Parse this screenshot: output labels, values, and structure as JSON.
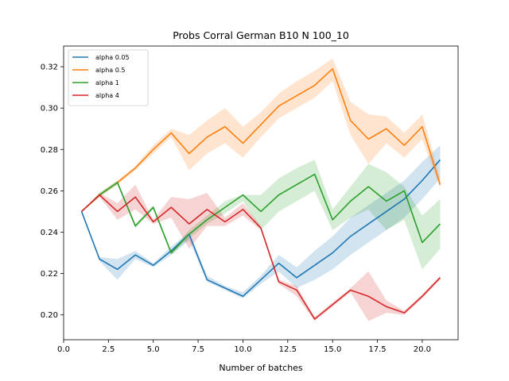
{
  "chart_data": {
    "type": "line",
    "title": "Probs Corral German B10 N 100_10",
    "xlabel": "Number of batches",
    "ylabel": "",
    "xlim": [
      0.0,
      22.0
    ],
    "ylim": [
      0.188,
      0.33
    ],
    "xticks": [
      0.0,
      2.5,
      5.0,
      7.5,
      10.0,
      12.5,
      15.0,
      17.5,
      20.0
    ],
    "xtick_labels": [
      "0.0",
      "2.5",
      "5.0",
      "7.5",
      "10.0",
      "12.5",
      "15.0",
      "17.5",
      "20.0"
    ],
    "yticks": [
      0.2,
      0.22,
      0.24,
      0.26,
      0.28,
      0.3,
      0.32
    ],
    "ytick_labels": [
      "0.20",
      "0.22",
      "0.24",
      "0.26",
      "0.28",
      "0.30",
      "0.32"
    ],
    "grid": false,
    "legend_position": "upper-left",
    "x": [
      1,
      2,
      3,
      4,
      5,
      6,
      7,
      8,
      9,
      10,
      11,
      12,
      13,
      14,
      15,
      16,
      17,
      18,
      19,
      20,
      21
    ],
    "series": [
      {
        "name": "alpha 0.05",
        "color": "#1f77b4",
        "values": [
          0.25,
          0.227,
          0.222,
          0.229,
          0.224,
          0.231,
          0.239,
          0.217,
          0.213,
          0.209,
          0.217,
          0.225,
          0.218,
          0.224,
          0.23,
          0.238,
          0.244,
          0.25,
          0.256,
          0.265,
          0.275
        ],
        "lower": [
          0.25,
          0.226,
          0.217,
          0.227,
          0.223,
          0.229,
          0.236,
          0.216,
          0.212,
          0.208,
          0.215,
          0.221,
          0.213,
          0.217,
          0.222,
          0.229,
          0.235,
          0.241,
          0.247,
          0.256,
          0.266
        ],
        "upper": [
          0.25,
          0.228,
          0.227,
          0.231,
          0.225,
          0.233,
          0.24,
          0.219,
          0.214,
          0.211,
          0.219,
          0.229,
          0.223,
          0.231,
          0.238,
          0.247,
          0.253,
          0.259,
          0.265,
          0.274,
          0.282
        ]
      },
      {
        "name": "alpha 0.5",
        "color": "#ff7f0e",
        "values": [
          0.25,
          0.258,
          0.264,
          0.271,
          0.28,
          0.288,
          0.278,
          0.286,
          0.291,
          0.283,
          0.292,
          0.301,
          0.306,
          0.311,
          0.319,
          0.294,
          0.285,
          0.29,
          0.282,
          0.291,
          0.263
        ],
        "lower": [
          0.25,
          0.257,
          0.263,
          0.27,
          0.278,
          0.286,
          0.27,
          0.278,
          0.283,
          0.276,
          0.286,
          0.295,
          0.3,
          0.305,
          0.313,
          0.287,
          0.273,
          0.283,
          0.276,
          0.285,
          0.261
        ],
        "upper": [
          0.25,
          0.259,
          0.265,
          0.272,
          0.282,
          0.29,
          0.287,
          0.294,
          0.3,
          0.291,
          0.298,
          0.307,
          0.313,
          0.318,
          0.324,
          0.303,
          0.297,
          0.296,
          0.288,
          0.297,
          0.266
        ]
      },
      {
        "name": "alpha 1",
        "color": "#2ca02c",
        "values": [
          0.25,
          0.258,
          0.264,
          0.243,
          0.252,
          0.23,
          0.239,
          0.246,
          0.252,
          0.258,
          0.25,
          0.258,
          0.263,
          0.268,
          0.246,
          0.255,
          0.262,
          0.255,
          0.26,
          0.235,
          0.244
        ],
        "lower": [
          0.25,
          0.257,
          0.263,
          0.242,
          0.251,
          0.229,
          0.237,
          0.244,
          0.249,
          0.255,
          0.241,
          0.25,
          0.255,
          0.26,
          0.241,
          0.247,
          0.251,
          0.241,
          0.246,
          0.222,
          0.232
        ],
        "upper": [
          0.25,
          0.259,
          0.265,
          0.244,
          0.253,
          0.231,
          0.241,
          0.248,
          0.255,
          0.258,
          0.258,
          0.266,
          0.271,
          0.275,
          0.251,
          0.262,
          0.273,
          0.269,
          0.262,
          0.248,
          0.256
        ]
      },
      {
        "name": "alpha 4",
        "color": "#d62728",
        "values": [
          0.25,
          0.258,
          0.25,
          0.257,
          0.245,
          0.252,
          0.244,
          0.251,
          0.245,
          0.251,
          0.242,
          0.216,
          0.212,
          0.198,
          0.205,
          0.212,
          0.209,
          0.204,
          0.201,
          0.209,
          0.218
        ],
        "lower": [
          0.25,
          0.257,
          0.246,
          0.251,
          0.244,
          0.247,
          0.232,
          0.243,
          0.243,
          0.248,
          0.241,
          0.215,
          0.209,
          0.197,
          0.204,
          0.211,
          0.197,
          0.201,
          0.2,
          0.208,
          0.217
        ],
        "upper": [
          0.25,
          0.259,
          0.254,
          0.263,
          0.246,
          0.257,
          0.256,
          0.259,
          0.247,
          0.254,
          0.243,
          0.217,
          0.214,
          0.199,
          0.206,
          0.213,
          0.221,
          0.207,
          0.202,
          0.21,
          0.219
        ]
      }
    ]
  }
}
